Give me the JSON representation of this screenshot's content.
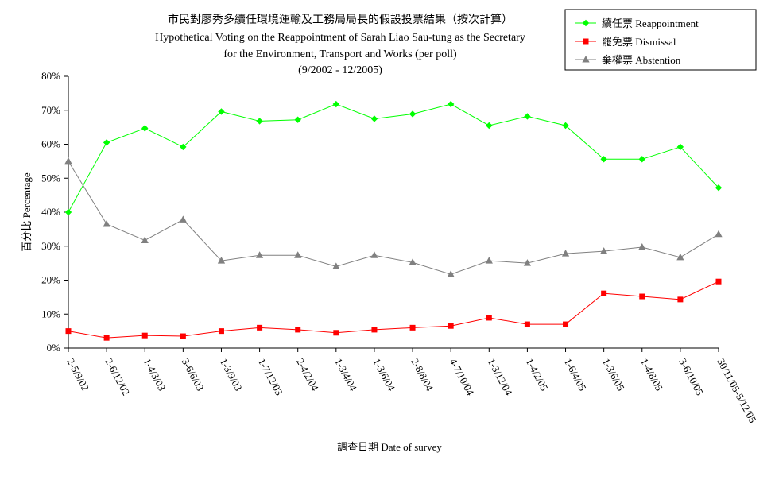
{
  "chart_data": {
    "type": "line",
    "title": [
      "市民對廖秀多續任環境運輸及工務局局長的假設投票結果（按次計算）",
      "Hypothetical Voting on the Reappointment of Sarah Liao Sau-tung as the Secretary",
      "for the Environment, Transport and Works (per poll)",
      "(9/2002 - 12/2005)"
    ],
    "xlabel": "調查日期 Date of survey",
    "ylabel": "百分比 Percentage",
    "ylim": [
      0,
      80
    ],
    "yticks": [
      0,
      10,
      20,
      30,
      40,
      50,
      60,
      70,
      80
    ],
    "ytick_labels": [
      "0%",
      "10%",
      "20%",
      "30%",
      "40%",
      "50%",
      "60%",
      "70%",
      "80%"
    ],
    "grid": false,
    "legend_position": "top-right",
    "categories": [
      "2-5/9/02",
      "2-6/12/02",
      "1-4/3/03",
      "3-6/6/03",
      "1-3/9/03",
      "1-7/12/03",
      "2-4/2/04",
      "1-3/4/04",
      "1-3/6/04",
      "2-8/8/04",
      "4-7/10/04",
      "1-3/12/04",
      "1-4/2/05",
      "1-6/4/05",
      "1-3/6/05",
      "1-4/8/05",
      "3-6/10/05",
      "30/11/05-5/12/05"
    ],
    "series": [
      {
        "name": "續任票 Reappointment",
        "color": "#00ff00",
        "marker": "diamond",
        "values": [
          40.0,
          60.5,
          64.7,
          59.2,
          69.6,
          66.8,
          67.2,
          71.8,
          67.5,
          68.9,
          71.8,
          65.5,
          68.2,
          65.5,
          55.6,
          55.6,
          59.2,
          47.2
        ]
      },
      {
        "name": "罷免票 Dismissal",
        "color": "#ff0000",
        "marker": "square",
        "values": [
          5.0,
          3.0,
          3.7,
          3.5,
          5.0,
          6.0,
          5.4,
          4.5,
          5.4,
          6.0,
          6.5,
          8.9,
          7.0,
          7.0,
          16.1,
          15.2,
          14.3,
          19.6
        ]
      },
      {
        "name": "棄權票 Abstention",
        "color": "#808080",
        "marker": "triangle",
        "values": [
          55.0,
          36.5,
          31.7,
          37.8,
          25.7,
          27.3,
          27.3,
          24.0,
          27.3,
          25.2,
          21.7,
          25.7,
          25.0,
          27.8,
          28.5,
          29.7,
          26.7,
          33.5
        ]
      }
    ]
  }
}
